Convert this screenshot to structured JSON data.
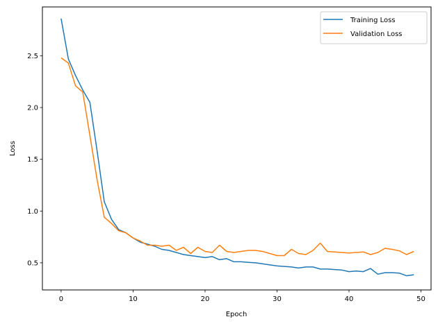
{
  "chart_data": {
    "type": "line",
    "title": "",
    "xlabel": "Epoch",
    "ylabel": "Loss",
    "xlim": [
      -2.6,
      51.4
    ],
    "ylim": [
      0.238,
      2.972
    ],
    "xticks": [
      0,
      10,
      20,
      30,
      40,
      50
    ],
    "yticks": [
      0.5,
      1.0,
      1.5,
      2.0,
      2.5
    ],
    "ytick_labels": [
      "0.5",
      "1.0",
      "1.5",
      "2.0",
      "2.5"
    ],
    "grid": false,
    "legend_position": "upper right",
    "x": [
      0,
      1,
      2,
      3,
      4,
      5,
      6,
      7,
      8,
      9,
      10,
      11,
      12,
      13,
      14,
      15,
      16,
      17,
      18,
      19,
      20,
      21,
      22,
      23,
      24,
      25,
      26,
      27,
      28,
      29,
      30,
      31,
      32,
      33,
      34,
      35,
      36,
      37,
      38,
      39,
      40,
      41,
      42,
      43,
      44,
      45,
      46,
      47,
      48,
      49
    ],
    "series": [
      {
        "name": "Training Loss",
        "color": "#1f77b4",
        "values": [
          2.86,
          2.47,
          2.31,
          2.17,
          2.05,
          1.58,
          1.09,
          0.92,
          0.82,
          0.79,
          0.74,
          0.7,
          0.68,
          0.66,
          0.63,
          0.62,
          0.6,
          0.58,
          0.57,
          0.56,
          0.55,
          0.56,
          0.53,
          0.54,
          0.51,
          0.51,
          0.505,
          0.5,
          0.49,
          0.48,
          0.47,
          0.465,
          0.46,
          0.45,
          0.46,
          0.46,
          0.44,
          0.44,
          0.435,
          0.43,
          0.415,
          0.42,
          0.415,
          0.445,
          0.39,
          0.405,
          0.405,
          0.4,
          0.375,
          0.385
        ]
      },
      {
        "name": "Validation Loss",
        "color": "#ff7f0e",
        "values": [
          2.48,
          2.43,
          2.21,
          2.15,
          1.73,
          1.3,
          0.94,
          0.88,
          0.81,
          0.79,
          0.74,
          0.71,
          0.67,
          0.67,
          0.66,
          0.67,
          0.62,
          0.65,
          0.59,
          0.65,
          0.61,
          0.6,
          0.67,
          0.61,
          0.6,
          0.61,
          0.62,
          0.62,
          0.61,
          0.59,
          0.57,
          0.57,
          0.63,
          0.59,
          0.58,
          0.62,
          0.69,
          0.61,
          0.605,
          0.6,
          0.595,
          0.6,
          0.605,
          0.58,
          0.6,
          0.64,
          0.63,
          0.615,
          0.58,
          0.61
        ]
      }
    ]
  },
  "legend": {
    "items": [
      "Training Loss",
      "Validation Loss"
    ]
  },
  "axes": {
    "xlabel": "Epoch",
    "ylabel": "Loss"
  }
}
